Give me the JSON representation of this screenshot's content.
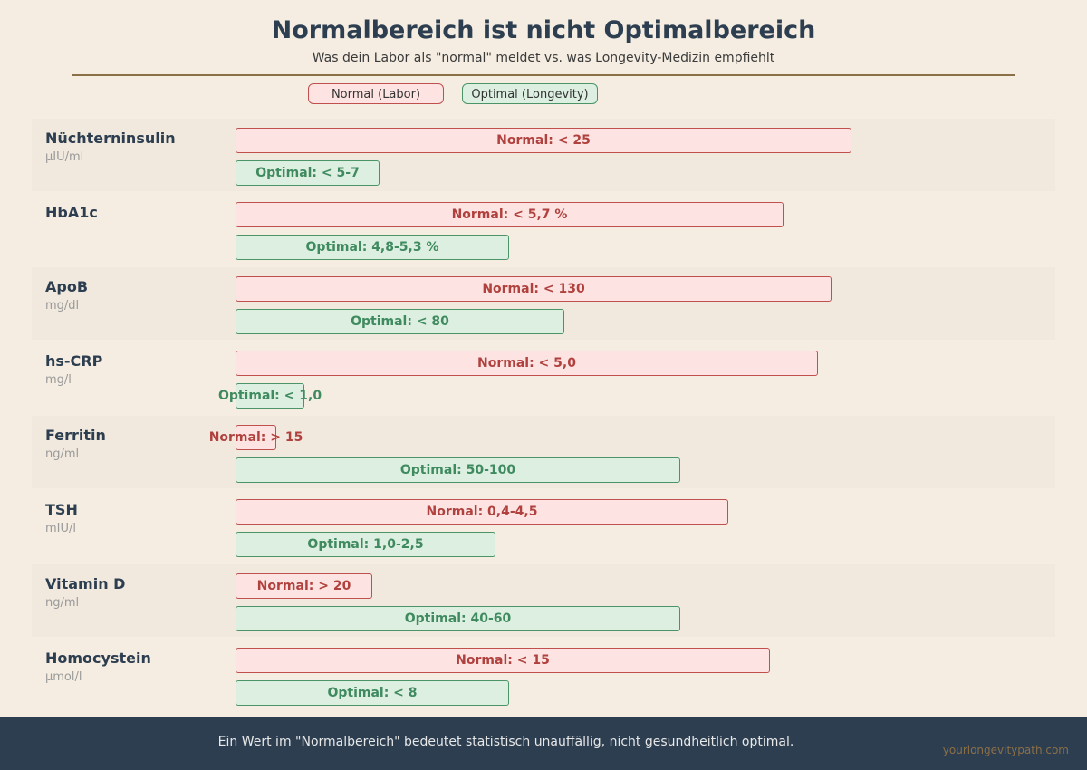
{
  "header": {
    "title": "Normalbereich ist nicht Optimalbereich",
    "subtitle": "Was dein Labor als \"normal\" meldet vs. was Longevity-Medizin empfiehlt"
  },
  "legend": {
    "normal": "Normal (Labor)",
    "optimal": "Optimal (Longevity)"
  },
  "chart_data": {
    "type": "bar",
    "title": "Normalbereich ist nicht Optimalbereich",
    "subtitle": "Was dein Labor als \"normal\" meldet vs. was Longevity-Medizin empfiehlt",
    "series": [
      {
        "name": "Normal (Labor)"
      },
      {
        "name": "Optimal (Longevity)"
      }
    ],
    "items": [
      {
        "name": "Nüchterninsulin",
        "unit": "µIU/ml",
        "normal_label": "Normal: < 25",
        "optimal_label": "Optimal: < 5-7",
        "normal_frac": 0.9,
        "optimal_frac": 0.21
      },
      {
        "name": "HbA1c",
        "unit": "",
        "normal_label": "Normal: < 5,7 %",
        "optimal_label": "Optimal: 4,8-5,3 %",
        "normal_frac": 0.8,
        "optimal_frac": 0.4
      },
      {
        "name": "ApoB",
        "unit": "mg/dl",
        "normal_label": "Normal: < 130",
        "optimal_label": "Optimal: < 80",
        "normal_frac": 0.87,
        "optimal_frac": 0.48
      },
      {
        "name": "hs-CRP",
        "unit": "mg/l",
        "normal_label": "Normal: < 5,0",
        "optimal_label": "Optimal: < 1,0",
        "normal_frac": 0.85,
        "optimal_frac": 0.1
      },
      {
        "name": "Ferritin",
        "unit": "ng/ml",
        "normal_label": "Normal: > 15",
        "optimal_label": "Optimal: 50-100",
        "normal_frac": 0.06,
        "optimal_frac": 0.65
      },
      {
        "name": "TSH",
        "unit": "mIU/l",
        "normal_label": "Normal: 0,4-4,5",
        "optimal_label": "Optimal: 1,0-2,5",
        "normal_frac": 0.72,
        "optimal_frac": 0.38
      },
      {
        "name": "Vitamin D",
        "unit": "ng/ml",
        "normal_label": "Normal: > 20",
        "optimal_label": "Optimal: 40-60",
        "normal_frac": 0.2,
        "optimal_frac": 0.65
      },
      {
        "name": "Homocystein",
        "unit": "µmol/l",
        "normal_label": "Normal: < 15",
        "optimal_label": "Optimal: < 8",
        "normal_frac": 0.78,
        "optimal_frac": 0.4
      }
    ]
  },
  "footer": {
    "text": "Ein Wert im \"Normalbereich\" bedeutet statistisch unauffällig, nicht gesundheitlich optimal.",
    "brand": "yourlongevitypath.com"
  },
  "colors": {
    "background": "#f5ede1",
    "normal_fill": "#fde4e2",
    "normal_border": "#c0504d",
    "optimal_fill": "#dcefe1",
    "optimal_border": "#4a9468",
    "footer_bg": "#2c3e50"
  }
}
